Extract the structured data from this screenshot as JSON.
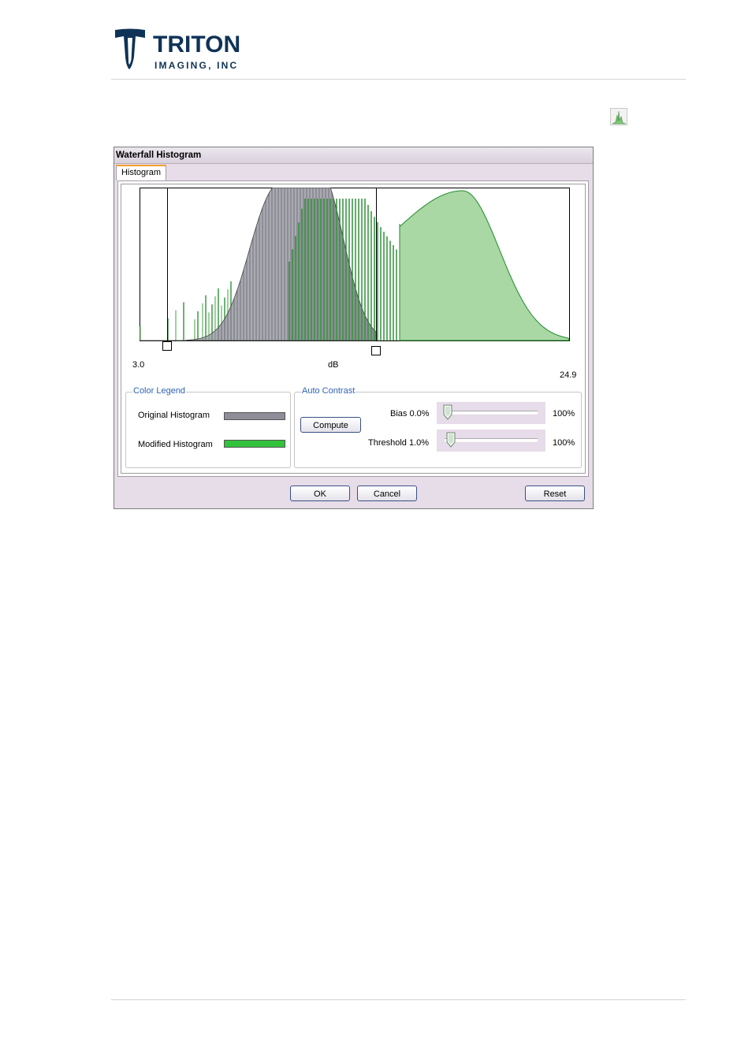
{
  "logo": {
    "word": "TRITON",
    "sub": "IMAGING, INC"
  },
  "dialog": {
    "title": "Waterfall Histogram",
    "tab_label": "Histogram",
    "histogram": {
      "x_min_label": "3.0",
      "x_unit_label": "dB",
      "x_max_label": "24.9"
    },
    "color_legend": {
      "title": "Color Legend",
      "items": [
        {
          "label": "Original Histogram",
          "color": "#8e8e98"
        },
        {
          "label": "Modified Histogram",
          "color": "#33c23c"
        }
      ]
    },
    "auto_contrast": {
      "title": "Auto Contrast",
      "compute_label": "Compute",
      "bias": {
        "label": "Bias 0.0%",
        "max_label": "100%",
        "value": 0.0
      },
      "threshold": {
        "label": "Threshold 1.0%",
        "max_label": "100%",
        "value": 1.0
      }
    },
    "buttons": {
      "ok": "OK",
      "cancel": "Cancel",
      "reset": "Reset"
    }
  },
  "colors": {
    "original": "#8e8e98",
    "modified_fill": "#a9d8a4",
    "modified_line": "#1f8a2a",
    "accent": "#2f62b5"
  }
}
